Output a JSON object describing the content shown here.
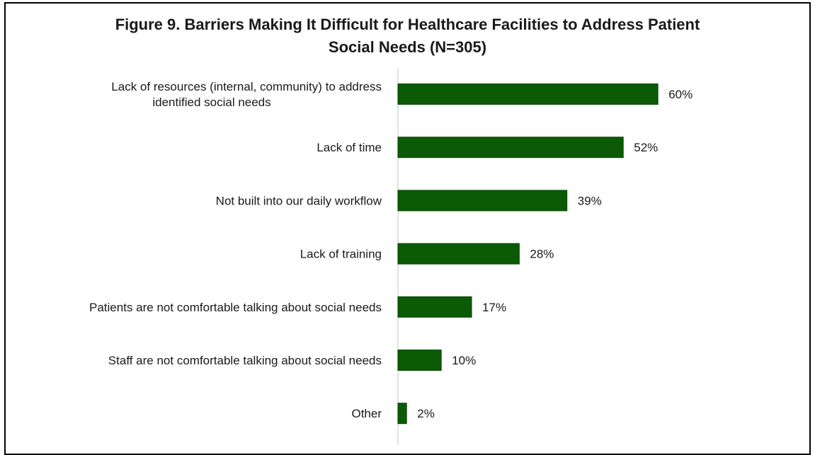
{
  "colors": {
    "bar": "#0b5a06",
    "bar_edge": "#0a4a05",
    "axis": "#d9d9d9",
    "frame": "#000000",
    "text": "#1a1a1a"
  },
  "chart_data": {
    "type": "bar",
    "orientation": "horizontal",
    "title": "Figure 9. Barriers Making It Difficult for Healthcare Facilities to Address Patient Social Needs (N=305)",
    "title_lines": [
      "Figure 9. Barriers Making It Difficult for Healthcare Facilities to Address Patient",
      "Social Needs (N=305)"
    ],
    "xlabel": "",
    "ylabel": "",
    "unit": "%",
    "xlim": [
      0,
      60
    ],
    "grid": false,
    "legend": "none",
    "categories": [
      [
        "Lack of resources (internal, community) to address",
        "identified social needs"
      ],
      [
        "Lack of time"
      ],
      [
        "Not built into our daily workflow"
      ],
      [
        "Lack of training"
      ],
      [
        "Patients are not comfortable talking about social needs"
      ],
      [
        "Staff are not comfortable talking about social needs"
      ],
      [
        "Other"
      ]
    ],
    "values": [
      60,
      52,
      39,
      28,
      17,
      10,
      2
    ],
    "data_labels": [
      "60%",
      "52%",
      "39%",
      "28%",
      "17%",
      "10%",
      "2%"
    ]
  }
}
